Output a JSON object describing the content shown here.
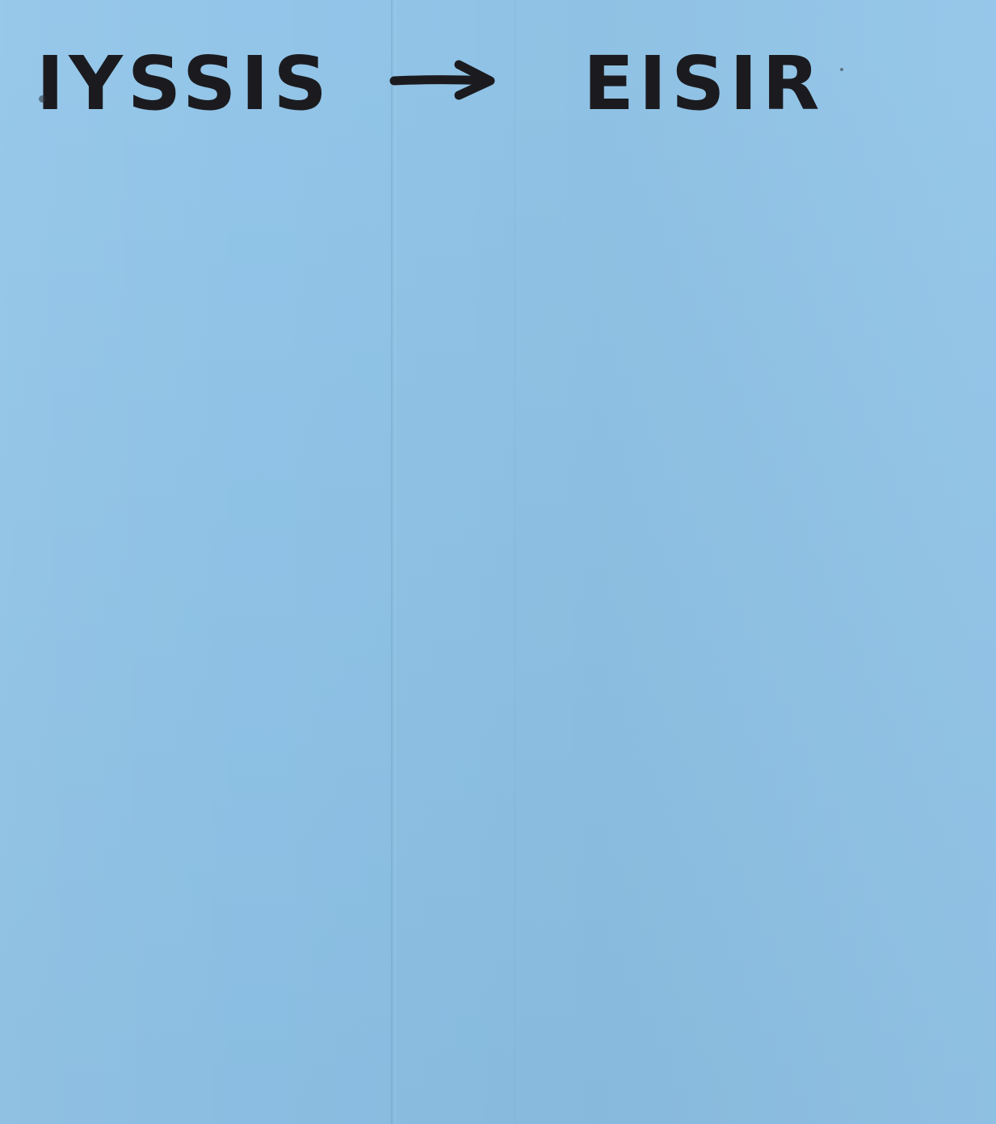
{
  "note": {
    "left_word": "IYSSIS",
    "right_word": "EISIR",
    "arrow": "→",
    "paper_color": "#8ec3e8",
    "ink_color": "#1b1b1f"
  }
}
